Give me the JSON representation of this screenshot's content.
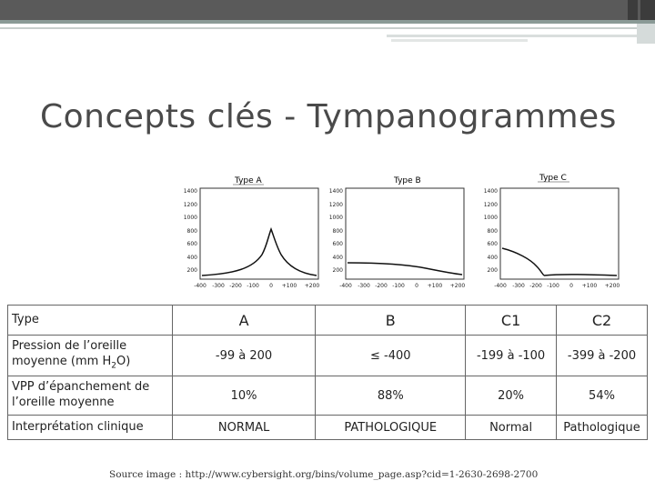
{
  "slide": {
    "title": "Concepts clés - Tympanogrammes",
    "source": "Source image : http://www.cybersight.org/bins/volume_page.asp?cid=1-2630-2698-2700"
  },
  "graphs": [
    {
      "title": "Type A",
      "y_ticks": [
        "1400",
        "1200",
        "1000",
        "800",
        "600",
        "400",
        "200"
      ],
      "x_ticks": [
        "-400",
        "-300",
        "-200",
        "-100",
        "0",
        "+100",
        "+200"
      ]
    },
    {
      "title": "Type B",
      "y_ticks": [
        "1400",
        "1200",
        "1000",
        "800",
        "600",
        "400",
        "200"
      ],
      "x_ticks": [
        "-400",
        "-300",
        "-200",
        "-100",
        "0",
        "+100",
        "+200"
      ]
    },
    {
      "title": "Type C",
      "y_ticks": [
        "1400",
        "1200",
        "1000",
        "800",
        "600",
        "400",
        "200"
      ],
      "x_ticks": [
        "-400",
        "-300",
        "-200",
        "-100",
        "0",
        "+100",
        "+200"
      ]
    }
  ],
  "table": {
    "header": {
      "label": "Type",
      "cols": [
        "A",
        "B",
        "C1",
        "C2"
      ]
    },
    "rows": [
      {
        "label_pre": "Pression de l’oreille moyenne (mm H",
        "label_sub": "2",
        "label_post": "O)",
        "values": [
          "-99 à 200",
          "≤ -400",
          "-199 à -100",
          "-399 à -200"
        ]
      },
      {
        "label": "VPP d’épanchement de l’oreille moyenne",
        "values": [
          "10%",
          "88%",
          "20%",
          "54%"
        ]
      },
      {
        "label": "Interprétation clinique",
        "values": [
          "NORMAL",
          "PATHOLOGIQUE",
          "Normal",
          "Pathologique"
        ]
      }
    ]
  }
}
